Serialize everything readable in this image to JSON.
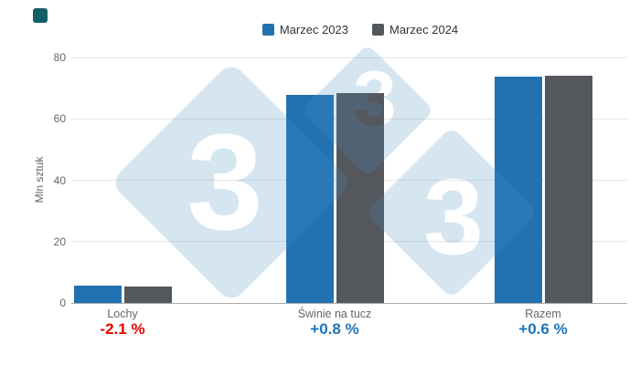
{
  "logo": {
    "color": "#155f66"
  },
  "legend": {
    "items": [
      {
        "label": "Marzec 2023",
        "color": "#2272b2"
      },
      {
        "label": "Marzec 2024",
        "color": "#54575c"
      }
    ]
  },
  "chart_data": {
    "type": "bar",
    "title": "",
    "xlabel": "",
    "ylabel": "Mln sztuk",
    "ylim": [
      0,
      80
    ],
    "yticks": [
      0,
      20,
      40,
      60,
      80
    ],
    "grid": true,
    "legend_position": "top",
    "categories": [
      "Lochy",
      "Świnie na tucz",
      "Razem"
    ],
    "series": [
      {
        "name": "Marzec 2023",
        "color": "#2272b2",
        "values": [
          5.6,
          67.8,
          73.8
        ]
      },
      {
        "name": "Marzec 2024",
        "color": "#54575c",
        "values": [
          5.5,
          68.3,
          74.2
        ]
      }
    ],
    "deltas": [
      {
        "text": "-2.1 %",
        "color": "#e60000"
      },
      {
        "text": "+0.8 %",
        "color": "#1c75bc"
      },
      {
        "text": "+0.6 %",
        "color": "#1c75bc"
      }
    ]
  },
  "watermark": {
    "glyph": "3",
    "fill": "#4a90c4",
    "opacity": "0.22"
  }
}
